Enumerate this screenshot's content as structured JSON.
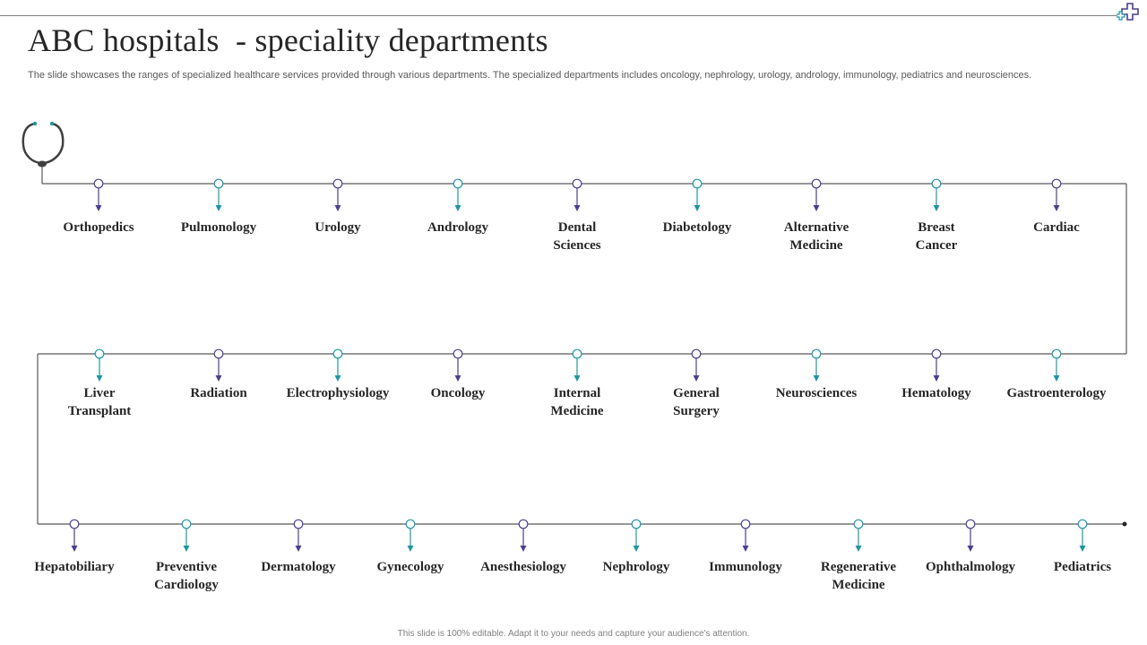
{
  "title": "ABC hospitals  - speciality departments",
  "subtitle": "The slide showcases the ranges of specialized healthcare services provided through various departments. The specialized departments includes oncology, nephrology, urology, andrology, immunology, pediatrics and neurosciences.",
  "footer": "This slide is 100% editable. Adapt it to your needs and capture your audience's attention.",
  "colors": {
    "purple": "#4b3f8f",
    "teal": "#1f95a3",
    "line": "#595959",
    "text": "#262626"
  },
  "icons": {
    "start": "stethoscope-icon",
    "brand": "medical-cross-icon"
  },
  "rows": [
    {
      "departments": [
        {
          "name": "Orthopedics",
          "accent": "purple"
        },
        {
          "name": "Pulmonology",
          "accent": "teal"
        },
        {
          "name": "Urology",
          "accent": "purple"
        },
        {
          "name": "Andrology",
          "accent": "teal"
        },
        {
          "name": "Dental\nSciences",
          "accent": "purple"
        },
        {
          "name": "Diabetology",
          "accent": "teal"
        },
        {
          "name": "Alternative\nMedicine",
          "accent": "purple"
        },
        {
          "name": "Breast\nCancer",
          "accent": "teal"
        },
        {
          "name": "Cardiac",
          "accent": "purple"
        }
      ]
    },
    {
      "departments": [
        {
          "name": "Liver\nTransplant",
          "accent": "teal"
        },
        {
          "name": "Radiation",
          "accent": "purple"
        },
        {
          "name": "Electrophysiology",
          "accent": "teal"
        },
        {
          "name": "Oncology",
          "accent": "purple"
        },
        {
          "name": "Internal\nMedicine",
          "accent": "teal"
        },
        {
          "name": "General\nSurgery",
          "accent": "purple"
        },
        {
          "name": "Neurosciences",
          "accent": "teal"
        },
        {
          "name": "Hematology",
          "accent": "purple"
        },
        {
          "name": "Gastroenterology",
          "accent": "teal"
        }
      ]
    },
    {
      "departments": [
        {
          "name": "Hepatobiliary",
          "accent": "purple"
        },
        {
          "name": "Preventive\nCardiology",
          "accent": "teal"
        },
        {
          "name": "Dermatology",
          "accent": "purple"
        },
        {
          "name": "Gynecology",
          "accent": "teal"
        },
        {
          "name": "Anesthesiology",
          "accent": "purple"
        },
        {
          "name": "Nephrology",
          "accent": "teal"
        },
        {
          "name": "Immunology",
          "accent": "purple"
        },
        {
          "name": "Regenerative\nMedicine",
          "accent": "teal"
        },
        {
          "name": "Ophthalmology",
          "accent": "purple"
        },
        {
          "name": "Pediatrics",
          "accent": "teal"
        }
      ]
    }
  ]
}
